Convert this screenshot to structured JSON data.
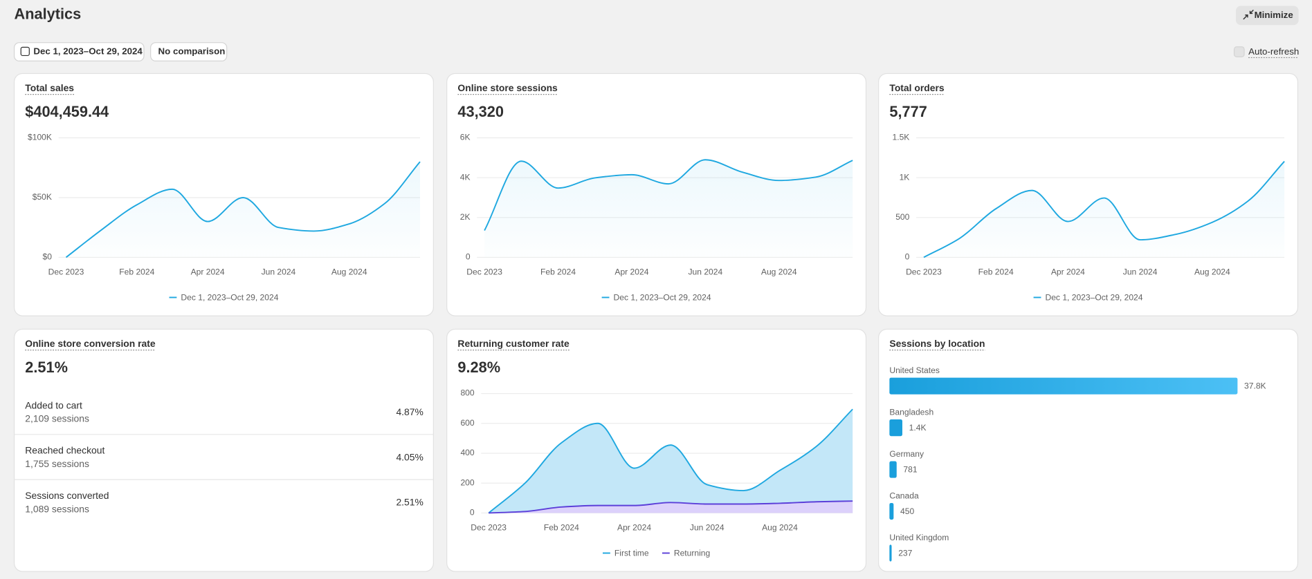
{
  "header": {
    "title": "Analytics",
    "minimize": "Minimize",
    "date_range": "Dec 1, 2023–Oct 29, 2024",
    "comparison": "No comparison",
    "auto_refresh": "Auto-refresh"
  },
  "chart_data": [
    {
      "type": "line",
      "title": "Total sales",
      "headline": "$404,459.44",
      "categories": [
        "Dec 2023",
        null,
        "Feb 2024",
        null,
        "Apr 2024",
        null,
        "Jun 2024",
        null,
        "Aug 2024",
        null,
        null
      ],
      "series": [
        {
          "name": "Dec 1, 2023–Oct 29, 2024",
          "color": "#1fa8e0",
          "values": [
            0,
            23000,
            44000,
            57000,
            30000,
            50000,
            25000,
            22000,
            28000,
            45000,
            80000
          ]
        }
      ],
      "ylim": [
        0,
        100000
      ],
      "yticks": [
        {
          "value": 0,
          "label": "$0"
        },
        {
          "value": 50000,
          "label": "$50K"
        },
        {
          "value": 100000,
          "label": "$100K"
        }
      ],
      "grid": true
    },
    {
      "type": "line",
      "title": "Online store sessions",
      "headline": "43,320",
      "categories": [
        "Dec 2023",
        null,
        "Feb 2024",
        null,
        "Apr 2024",
        null,
        "Jun 2024",
        null,
        "Aug 2024",
        null,
        null
      ],
      "series": [
        {
          "name": "Dec 1, 2023–Oct 29, 2024",
          "color": "#1fa8e0",
          "values": [
            1350,
            4830,
            3480,
            3990,
            4150,
            3690,
            4900,
            4280,
            3860,
            4030,
            4870
          ]
        }
      ],
      "ylim": [
        0,
        6000
      ],
      "yticks": [
        0,
        {
          "value": 2000,
          "label": "2K"
        },
        {
          "value": 4000,
          "label": "4K"
        },
        {
          "value": 6000,
          "label": "6K"
        }
      ],
      "grid": true
    },
    {
      "type": "line",
      "title": "Total orders",
      "headline": "5,777",
      "categories": [
        "Dec 2023",
        null,
        "Feb 2024",
        null,
        "Apr 2024",
        null,
        "Jun 2024",
        null,
        "Aug 2024",
        null,
        null
      ],
      "series": [
        {
          "name": "Dec 1, 2023–Oct 29, 2024",
          "color": "#1fa8e0",
          "values": [
            0,
            240,
            610,
            840,
            450,
            745,
            220,
            290,
            440,
            710,
            1205
          ]
        }
      ],
      "ylim": [
        0,
        1500
      ],
      "yticks": [
        0,
        500,
        {
          "value": 1000,
          "label": "1K"
        },
        {
          "value": 1500,
          "label": "1.5K"
        }
      ],
      "grid": true
    },
    {
      "type": "area",
      "title": "Returning customer rate",
      "headline": "9.28%",
      "categories": [
        "Dec 2023",
        null,
        "Feb 2024",
        null,
        "Apr 2024",
        null,
        "Jun 2024",
        null,
        "Aug 2024",
        null,
        null
      ],
      "series": [
        {
          "name": "First time",
          "color": "#1fa8e0",
          "values": [
            0,
            200,
            470,
            600,
            300,
            455,
            190,
            150,
            285,
            445,
            695
          ]
        },
        {
          "name": "Returning",
          "color": "#5b3fd9",
          "values": [
            0,
            10,
            40,
            50,
            50,
            70,
            60,
            60,
            65,
            75,
            80
          ]
        }
      ],
      "ylim": [
        0,
        800
      ],
      "yticks": [
        0,
        200,
        400,
        600,
        800
      ],
      "grid": true
    },
    {
      "type": "hbar",
      "title": "Sessions by location",
      "categories": [
        "United States",
        "Bangladesh",
        "Germany",
        "Canada",
        "United Kingdom"
      ],
      "values": [
        37800,
        1400,
        781,
        450,
        237
      ],
      "value_labels": [
        "37.8K",
        "1.4K",
        "781",
        "450",
        "237"
      ],
      "color": "#1a9fdc"
    }
  ],
  "conversion": {
    "title": "Online store conversion rate",
    "headline": "2.51%",
    "rows": [
      {
        "label": "Added to cart",
        "sessions": "2,109 sessions",
        "rate": "4.87%"
      },
      {
        "label": "Reached checkout",
        "sessions": "1,755 sessions",
        "rate": "4.05%"
      },
      {
        "label": "Sessions converted",
        "sessions": "1,089 sessions",
        "rate": "2.51%"
      }
    ]
  }
}
